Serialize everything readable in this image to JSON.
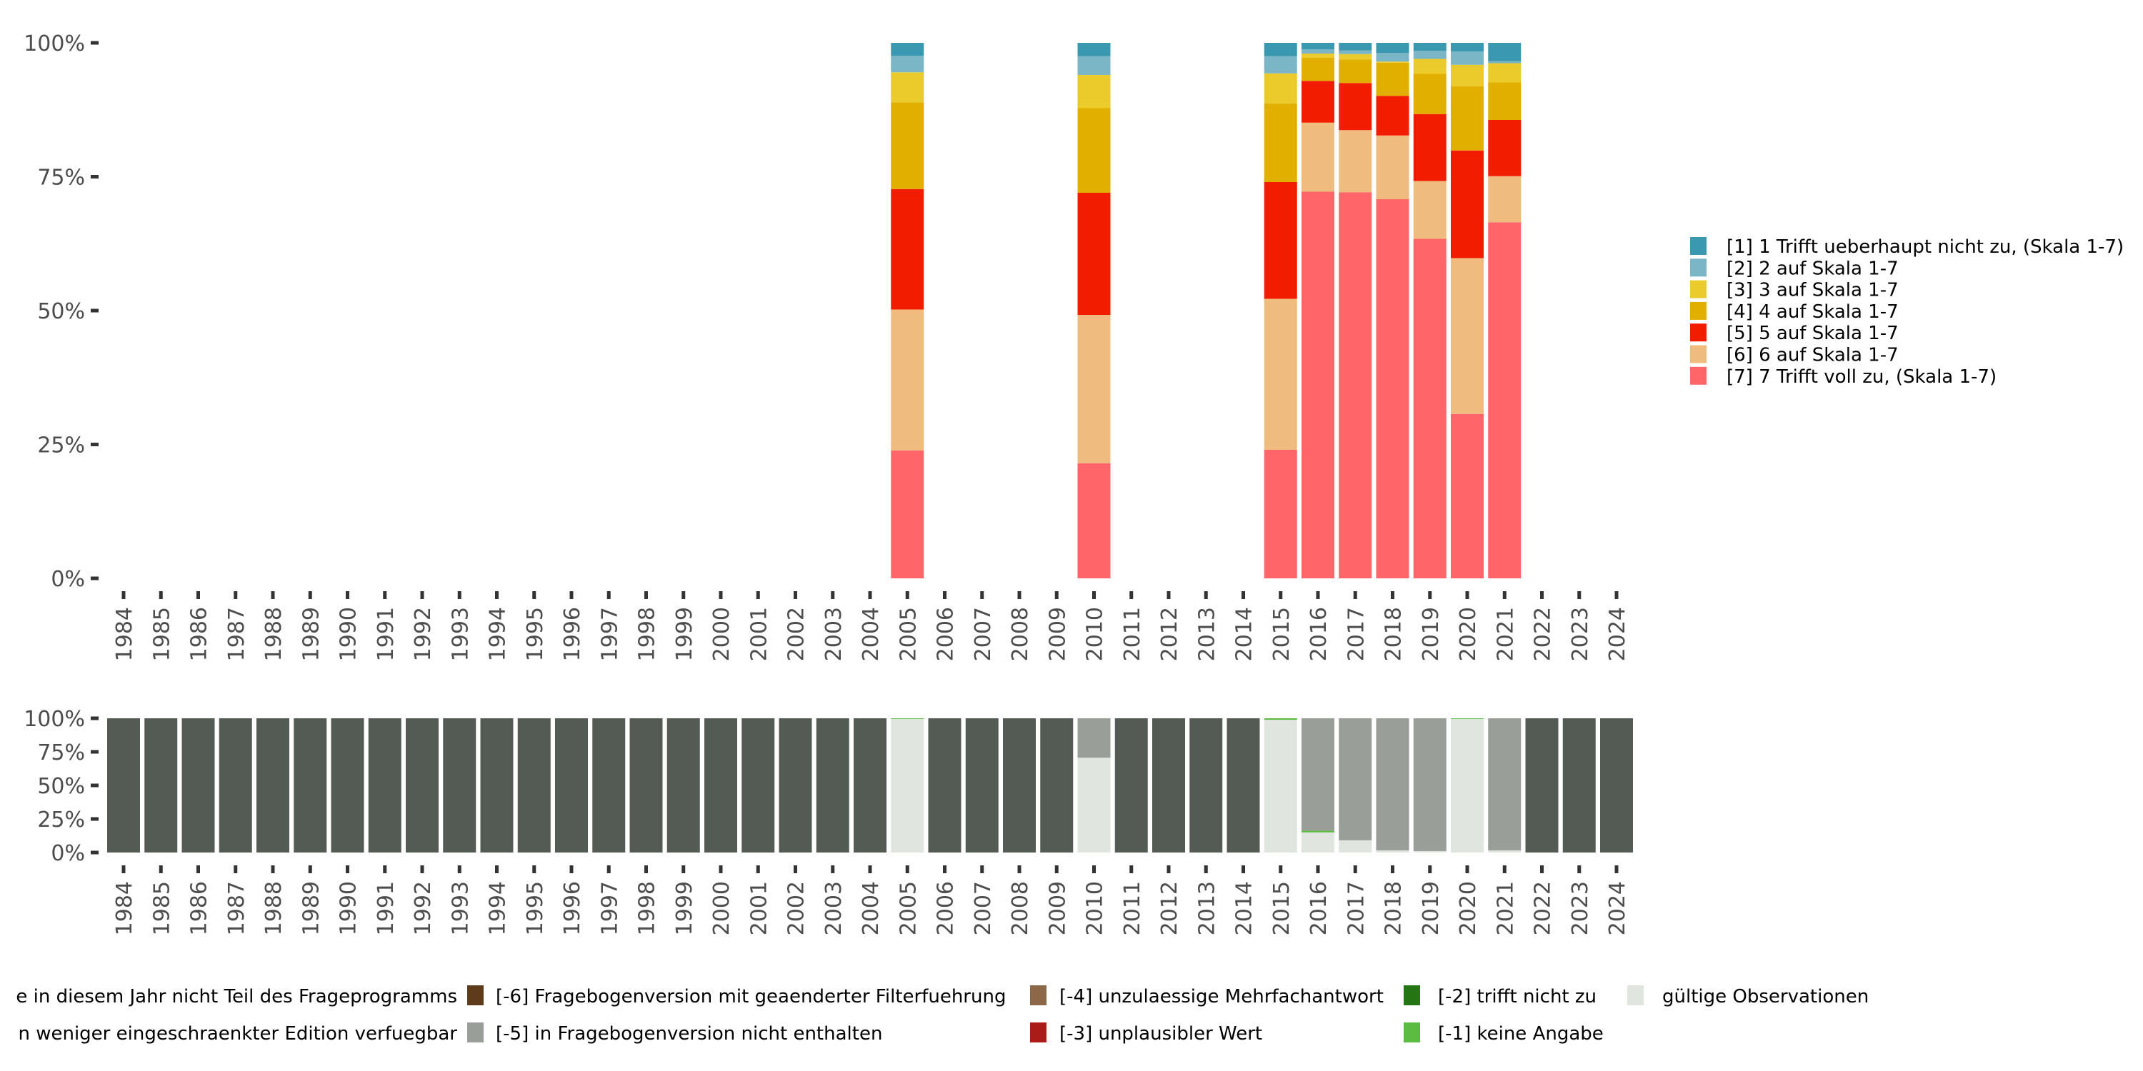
{
  "chart_data": [
    {
      "type": "bar",
      "stacked": true,
      "title": "",
      "xlabel": "",
      "ylabel": "",
      "ylim": [
        0,
        100
      ],
      "y_ticks": [
        "0%",
        "25%",
        "50%",
        "75%",
        "100%"
      ],
      "categories": [
        "1984",
        "1985",
        "1986",
        "1987",
        "1988",
        "1989",
        "1990",
        "1991",
        "1992",
        "1993",
        "1994",
        "1995",
        "1996",
        "1997",
        "1998",
        "1999",
        "2000",
        "2001",
        "2002",
        "2003",
        "2004",
        "2005",
        "2006",
        "2007",
        "2008",
        "2009",
        "2010",
        "2011",
        "2012",
        "2013",
        "2014",
        "2015",
        "2016",
        "2017",
        "2018",
        "2019",
        "2020",
        "2021",
        "2022",
        "2023",
        "2024"
      ],
      "legend_position": "right",
      "series": [
        {
          "name": "[7] 7 Trifft voll zu, (Skala 1-7)",
          "color": "#ff6569",
          "values": {
            "2005": 23.9,
            "2010": 21.5,
            "2015": 24.0,
            "2016": 72.2,
            "2017": 72.1,
            "2018": 70.8,
            "2019": 63.4,
            "2020": 30.7,
            "2021": 66.5
          }
        },
        {
          "name": "[6] 6 auf Skala 1-7",
          "color": "#f0bb7f",
          "values": {
            "2005": 26.3,
            "2010": 27.7,
            "2015": 28.2,
            "2016": 12.9,
            "2017": 11.6,
            "2018": 11.9,
            "2019": 10.8,
            "2020": 29.1,
            "2021": 8.6
          }
        },
        {
          "name": "[5] 5 auf Skala 1-7",
          "color": "#f21c00",
          "values": {
            "2005": 22.5,
            "2010": 22.8,
            "2015": 21.8,
            "2016": 7.8,
            "2017": 8.8,
            "2018": 7.4,
            "2019": 12.5,
            "2020": 20.1,
            "2021": 10.5
          }
        },
        {
          "name": "[4] 4 auf Skala 1-7",
          "color": "#e0af00",
          "values": {
            "2005": 16.2,
            "2010": 15.8,
            "2015": 14.7,
            "2016": 4.3,
            "2017": 4.4,
            "2018": 6.2,
            "2019": 7.5,
            "2020": 12.0,
            "2021": 7.0
          }
        },
        {
          "name": "[3] 3 auf Skala 1-7",
          "color": "#ebcb2b",
          "values": {
            "2005": 5.6,
            "2010": 6.2,
            "2015": 5.6,
            "2016": 0.8,
            "2017": 1.0,
            "2018": 0.2,
            "2019": 2.8,
            "2020": 4.0,
            "2021": 3.6
          }
        },
        {
          "name": "[2] 2 auf Skala 1-7",
          "color": "#7ab6c6",
          "values": {
            "2005": 3.1,
            "2010": 3.5,
            "2015": 3.2,
            "2016": 0.8,
            "2017": 0.7,
            "2018": 1.6,
            "2019": 1.5,
            "2020": 2.5,
            "2021": 0.4
          }
        },
        {
          "name": "[1] 1 Trifft ueberhaupt nicht zu, (Skala 1-7)",
          "color": "#3a98b0",
          "values": {
            "2005": 2.4,
            "2010": 2.5,
            "2015": 2.5,
            "2016": 1.2,
            "2017": 1.4,
            "2018": 1.9,
            "2019": 1.5,
            "2020": 1.6,
            "2021": 3.4
          }
        }
      ],
      "legend_order": [
        6,
        5,
        4,
        3,
        2,
        1,
        0
      ]
    },
    {
      "type": "bar",
      "stacked": true,
      "ylim": [
        0,
        100
      ],
      "y_ticks": [
        "0%",
        "25%",
        "50%",
        "75%",
        "100%"
      ],
      "legend_position": "bottom",
      "series": [
        {
          "name": "gültige Observationen",
          "color": "#e0e5e0",
          "values": {
            "2005": 99.5,
            "2010": 70.6,
            "2015": 98.9,
            "2016": 15.0,
            "2017": 9.1,
            "2018": 1.6,
            "2019": 1.1,
            "2020": 99.5,
            "2021": 1.6
          }
        },
        {
          "name": "[-1] keine Angabe",
          "color": "#5bbc41",
          "values": {
            "2005": 0.5,
            "2015": 1.1,
            "2016": 1.2,
            "2020": 0.5
          }
        },
        {
          "name": "[-5] in Fragebogenversion nicht enthalten",
          "color": "#999e98",
          "values": {
            "2010": 29.4,
            "2016": 83.8,
            "2017": 90.9,
            "2018": 98.4,
            "2019": 98.9,
            "2021": 98.4
          }
        },
        {
          "name": "e in diesem Jahr nicht Teil des Frageprogramms",
          "color": "#545b54",
          "values_default": 100,
          "except": [
            "2005",
            "2010",
            "2015",
            "2016",
            "2017",
            "2018",
            "2019",
            "2020",
            "2021"
          ]
        }
      ],
      "legend": [
        {
          "label": "e in diesem Jahr nicht Teil des Frageprogramms",
          "color": null
        },
        {
          "label": "n weniger eingeschraenkter Edition verfuegbar",
          "color": null
        },
        {
          "label": "[-6] Fragebogenversion mit geaenderter Filterfuehrung",
          "color": "#5e3b1b"
        },
        {
          "label": "[-5] in Fragebogenversion nicht enthalten",
          "color": "#999e98"
        },
        {
          "label": "[-4] unzulaessige Mehrfachantwort",
          "color": "#8c6848"
        },
        {
          "label": "[-3] unplausibler Wert",
          "color": "#ab1c18"
        },
        {
          "label": "[-2] trifft nicht zu",
          "color": "#257515"
        },
        {
          "label": "[-1] keine Angabe",
          "color": "#5bbc41"
        },
        {
          "label": "gültige Observationen",
          "color": "#e0e5e0"
        }
      ]
    }
  ]
}
